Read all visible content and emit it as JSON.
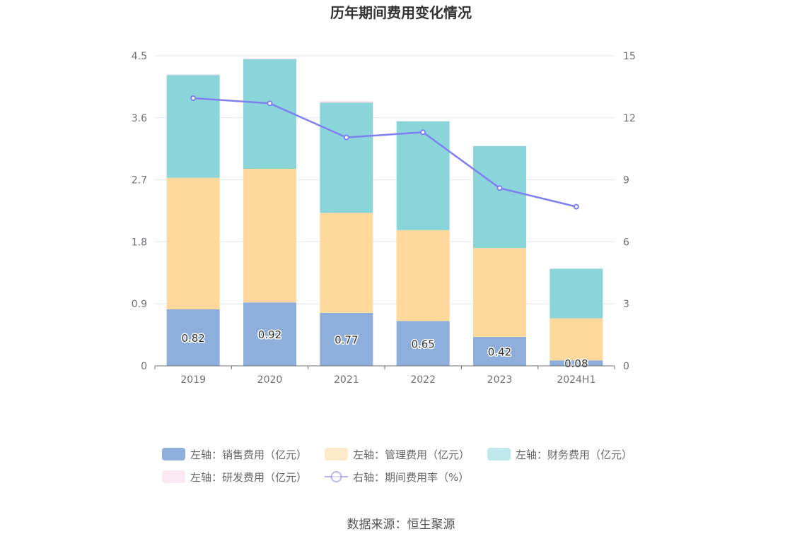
{
  "page": {
    "title": "历年期间费用变化情况",
    "source": "数据来源：恒生聚源"
  },
  "chart_data": {
    "type": "bar",
    "stacked": true,
    "title": "历年期间费用变化情况",
    "categories": [
      "2019",
      "2020",
      "2021",
      "2022",
      "2023",
      "2024H1"
    ],
    "y_left": {
      "min": 0,
      "max": 4.5,
      "ticks": [
        "0",
        "0.9",
        "1.8",
        "2.7",
        "3.6",
        "4.5"
      ]
    },
    "y_right": {
      "min": 0,
      "max": 15,
      "ticks": [
        "0",
        "3",
        "6",
        "9",
        "12",
        "15"
      ]
    },
    "grid": true,
    "legend_position": "bottom",
    "series": [
      {
        "name": "左轴：销售费用（亿元）",
        "type": "bar",
        "axis": "left",
        "color": "#8eaedb",
        "values": [
          0.82,
          0.92,
          0.77,
          0.65,
          0.42,
          0.08
        ],
        "labels": [
          "0.82",
          "0.92",
          "0.77",
          "0.65",
          "0.42",
          "0.08"
        ]
      },
      {
        "name": "左轴：管理费用（亿元）",
        "type": "bar",
        "axis": "left",
        "color": "#fed99b",
        "values": [
          1.91,
          1.94,
          1.45,
          1.32,
          1.29,
          0.61
        ]
      },
      {
        "name": "左轴：财务费用（亿元）",
        "type": "bar",
        "axis": "left",
        "color": "#89d5da",
        "values": [
          1.49,
          1.59,
          1.6,
          1.58,
          1.48,
          0.72
        ]
      },
      {
        "name": "左轴：研发费用（亿元）",
        "type": "bar",
        "axis": "left",
        "color": "#f5d6ea",
        "values": [
          0.01,
          0.01,
          0.02,
          0.0,
          0.0,
          0.0
        ]
      },
      {
        "name": "右轴：期间费用率（%）",
        "type": "line",
        "axis": "right",
        "color": "#7f7ff0",
        "values": [
          12.95,
          12.7,
          11.05,
          11.3,
          8.6,
          7.7
        ]
      }
    ]
  }
}
